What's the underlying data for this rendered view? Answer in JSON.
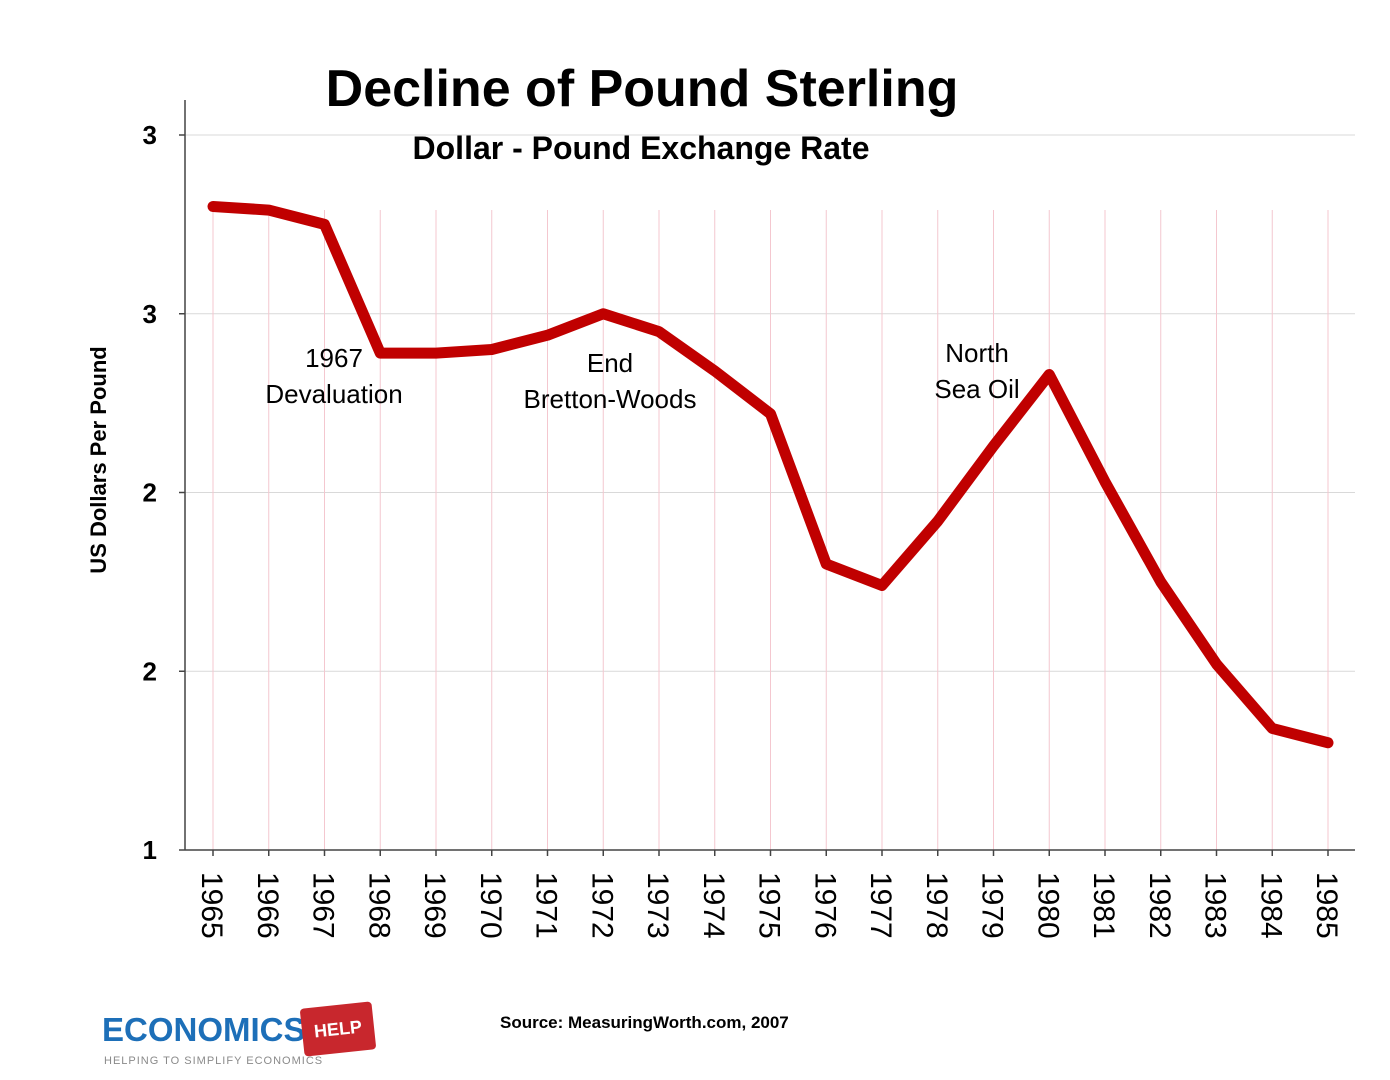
{
  "chart_data": {
    "type": "line",
    "title": "Decline of Pound Sterling",
    "subtitle": "Dollar - Pound Exchange Rate",
    "ylabel": "US Dollars Per Pound",
    "xlabel": "",
    "ylim": [
      1,
      3
    ],
    "y_ticks": [
      {
        "value": 1.0,
        "label": "1"
      },
      {
        "value": 1.5,
        "label": "2"
      },
      {
        "value": 2.0,
        "label": "2"
      },
      {
        "value": 2.5,
        "label": "3"
      },
      {
        "value": 3.0,
        "label": "3"
      }
    ],
    "grid": true,
    "x": [
      "1965",
      "1966",
      "1967",
      "1968",
      "1969",
      "1970",
      "1971",
      "1972",
      "1973",
      "1974",
      "1975",
      "1976",
      "1977",
      "1978",
      "1979",
      "1980",
      "1981",
      "1982",
      "1983",
      "1984",
      "1985"
    ],
    "series": [
      {
        "color": "#c00000",
        "values": [
          2.8,
          2.79,
          2.75,
          2.39,
          2.39,
          2.4,
          2.44,
          2.5,
          2.45,
          2.34,
          2.22,
          1.8,
          1.74,
          1.92,
          2.13,
          2.33,
          2.03,
          1.75,
          1.52,
          1.34,
          1.3
        ]
      }
    ],
    "annotations": [
      {
        "lines": [
          "1967",
          "Devaluation"
        ],
        "x": "1967",
        "y": 2.39
      },
      {
        "lines": [
          "End",
          "Bretton-Woods"
        ],
        "x": "1972",
        "y": 2.38
      },
      {
        "lines": [
          "North",
          "Sea Oil"
        ],
        "x": "1979.5",
        "y": 2.41
      }
    ]
  },
  "footer": {
    "source": "Source: MeasuringWorth.com, 2007"
  },
  "logo": {
    "main": "ECONOMICS",
    "badge": "HELP",
    "tagline": "HELPING TO SIMPLIFY ECONOMICS"
  }
}
